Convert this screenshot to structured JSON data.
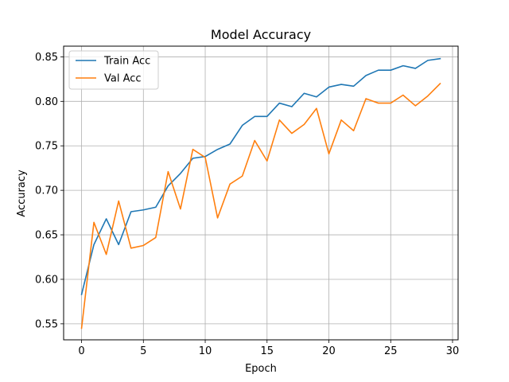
{
  "chart_data": {
    "type": "line",
    "title": "Model Accuracy",
    "xlabel": "Epoch",
    "ylabel": "Accuracy",
    "xlim": [
      -1.45,
      30.45
    ],
    "ylim": [
      0.532,
      0.862
    ],
    "xticks": [
      0,
      5,
      10,
      15,
      20,
      25,
      30
    ],
    "yticks": [
      0.55,
      0.6,
      0.65,
      0.7,
      0.75,
      0.8,
      0.85
    ],
    "grid": true,
    "legend_position": "upper-left",
    "x": [
      0,
      1,
      2,
      3,
      4,
      5,
      6,
      7,
      8,
      9,
      10,
      11,
      12,
      13,
      14,
      15,
      16,
      17,
      18,
      19,
      20,
      21,
      22,
      23,
      24,
      25,
      26,
      27,
      28,
      29
    ],
    "series": [
      {
        "name": "Train Acc",
        "color": "#1f77b4",
        "values": [
          0.583,
          0.639,
          0.668,
          0.639,
          0.676,
          0.678,
          0.681,
          0.705,
          0.719,
          0.736,
          0.738,
          0.746,
          0.752,
          0.773,
          0.783,
          0.783,
          0.798,
          0.794,
          0.809,
          0.805,
          0.816,
          0.819,
          0.817,
          0.829,
          0.835,
          0.835,
          0.84,
          0.837,
          0.846,
          0.848
        ]
      },
      {
        "name": "Val Acc",
        "color": "#ff7f0e",
        "values": [
          0.545,
          0.664,
          0.628,
          0.688,
          0.635,
          0.638,
          0.647,
          0.721,
          0.679,
          0.746,
          0.737,
          0.669,
          0.707,
          0.716,
          0.756,
          0.733,
          0.779,
          0.764,
          0.774,
          0.792,
          0.741,
          0.779,
          0.767,
          0.803,
          0.798,
          0.798,
          0.807,
          0.795,
          0.806,
          0.82
        ]
      }
    ]
  }
}
